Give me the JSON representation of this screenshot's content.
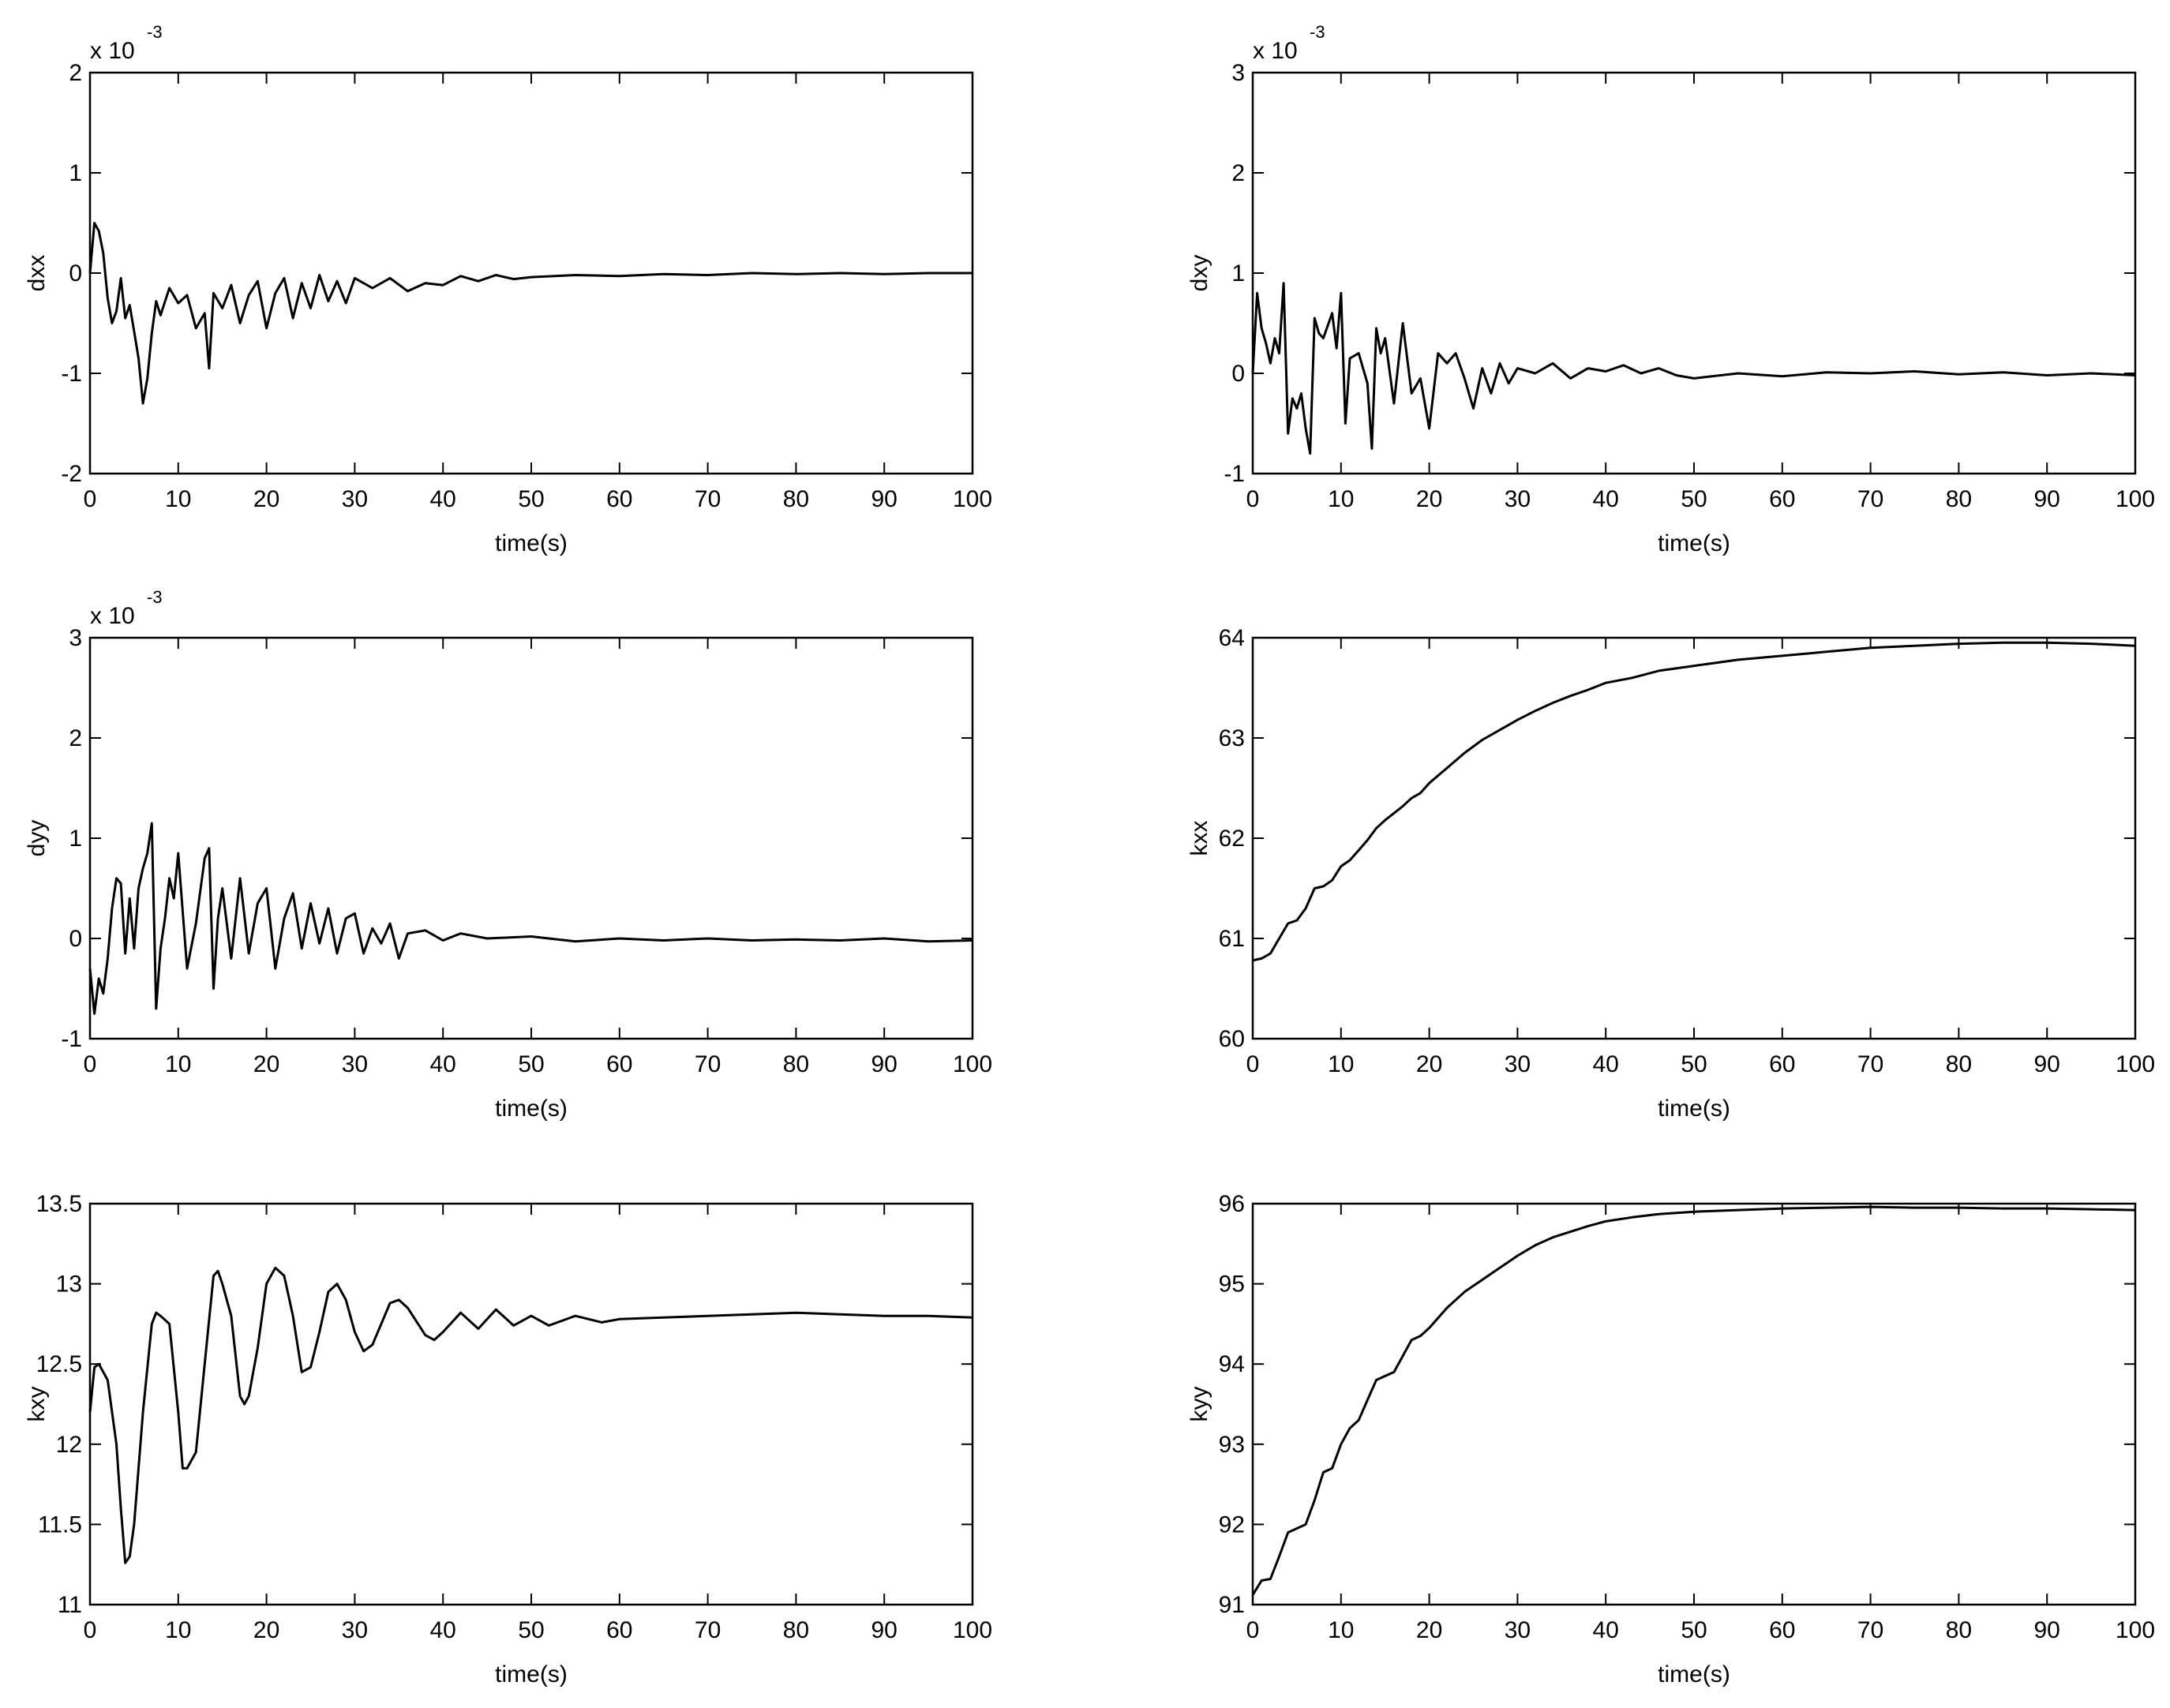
{
  "chart_data": [
    {
      "id": "dxx",
      "type": "line",
      "ylabel": "dxx",
      "xlabel": "time(s)",
      "exponent_label": "x 10",
      "exponent_power": "-3",
      "xlim": [
        0,
        100
      ],
      "ylim": [
        -2,
        2
      ],
      "xticks": [
        0,
        10,
        20,
        30,
        40,
        50,
        60,
        70,
        80,
        90,
        100
      ],
      "yticks": [
        -2,
        -1,
        0,
        1,
        2
      ],
      "grid": false,
      "series": [
        {
          "color": "#000000",
          "x": [
            0,
            0.5,
            1,
            1.5,
            2,
            2.5,
            3,
            3.5,
            4,
            4.5,
            5,
            5.5,
            6,
            6.5,
            7,
            7.5,
            8,
            9,
            10,
            11,
            12,
            13,
            13.5,
            14,
            15,
            16,
            17,
            18,
            19,
            20,
            21,
            22,
            23,
            24,
            25,
            26,
            27,
            28,
            29,
            30,
            32,
            34,
            36,
            38,
            40,
            42,
            44,
            46,
            48,
            50,
            55,
            60,
            65,
            70,
            75,
            80,
            85,
            90,
            95,
            100
          ],
          "y": [
            0.0,
            0.5,
            0.42,
            0.2,
            -0.25,
            -0.5,
            -0.38,
            -0.05,
            -0.45,
            -0.32,
            -0.58,
            -0.85,
            -1.3,
            -1.05,
            -0.6,
            -0.28,
            -0.42,
            -0.15,
            -0.3,
            -0.22,
            -0.55,
            -0.4,
            -0.95,
            -0.2,
            -0.35,
            -0.12,
            -0.5,
            -0.22,
            -0.08,
            -0.55,
            -0.2,
            -0.05,
            -0.45,
            -0.1,
            -0.35,
            -0.02,
            -0.28,
            -0.08,
            -0.3,
            -0.05,
            -0.15,
            -0.05,
            -0.18,
            -0.1,
            -0.12,
            -0.03,
            -0.08,
            -0.02,
            -0.06,
            -0.04,
            -0.02,
            -0.03,
            -0.01,
            -0.02,
            0.0,
            -0.01,
            0.0,
            -0.01,
            0.0,
            0.0
          ]
        }
      ]
    },
    {
      "id": "dxy",
      "type": "line",
      "ylabel": "dxy",
      "xlabel": "time(s)",
      "exponent_label": "x 10",
      "exponent_power": "-3",
      "xlim": [
        0,
        100
      ],
      "ylim": [
        -1,
        3
      ],
      "xticks": [
        0,
        10,
        20,
        30,
        40,
        50,
        60,
        70,
        80,
        90,
        100
      ],
      "yticks": [
        -1,
        0,
        1,
        2,
        3
      ],
      "grid": false,
      "series": [
        {
          "color": "#000000",
          "x": [
            0,
            0.5,
            1,
            1.5,
            2,
            2.5,
            3,
            3.5,
            4,
            4.5,
            5,
            5.5,
            6,
            6.5,
            7,
            7.5,
            8,
            9,
            9.5,
            10,
            10.5,
            11,
            12,
            13,
            13.5,
            14,
            14.5,
            15,
            16,
            17,
            18,
            19,
            20,
            21,
            22,
            23,
            24,
            25,
            26,
            27,
            28,
            29,
            30,
            32,
            34,
            36,
            38,
            40,
            42,
            44,
            46,
            48,
            50,
            55,
            60,
            65,
            70,
            75,
            80,
            85,
            90,
            95,
            100
          ],
          "y": [
            0.0,
            0.8,
            0.45,
            0.3,
            0.1,
            0.35,
            0.2,
            0.9,
            -0.6,
            -0.25,
            -0.35,
            -0.2,
            -0.55,
            -0.8,
            0.55,
            0.4,
            0.35,
            0.6,
            0.25,
            0.8,
            -0.5,
            0.15,
            0.2,
            -0.1,
            -0.75,
            0.45,
            0.2,
            0.35,
            -0.3,
            0.5,
            -0.2,
            -0.05,
            -0.55,
            0.2,
            0.1,
            0.2,
            -0.05,
            -0.35,
            0.05,
            -0.2,
            0.1,
            -0.1,
            0.05,
            0.0,
            0.1,
            -0.05,
            0.05,
            0.02,
            0.08,
            0.0,
            0.05,
            -0.02,
            -0.05,
            0.0,
            -0.03,
            0.01,
            0.0,
            0.02,
            -0.01,
            0.01,
            -0.02,
            0.0,
            -0.02
          ]
        }
      ]
    },
    {
      "id": "dyy",
      "type": "line",
      "ylabel": "dyy",
      "xlabel": "time(s)",
      "exponent_label": "x 10",
      "exponent_power": "-3",
      "xlim": [
        0,
        100
      ],
      "ylim": [
        -1,
        3
      ],
      "xticks": [
        0,
        10,
        20,
        30,
        40,
        50,
        60,
        70,
        80,
        90,
        100
      ],
      "yticks": [
        -1,
        0,
        1,
        2,
        3
      ],
      "grid": false,
      "series": [
        {
          "color": "#000000",
          "x": [
            0,
            0.5,
            1,
            1.5,
            2,
            2.5,
            3,
            3.5,
            4,
            4.5,
            5,
            5.5,
            6,
            6.5,
            7,
            7.5,
            8,
            8.5,
            9,
            9.5,
            10,
            11,
            12,
            13,
            13.5,
            14,
            14.5,
            15,
            16,
            17,
            18,
            19,
            20,
            21,
            22,
            23,
            24,
            25,
            26,
            27,
            28,
            29,
            30,
            31,
            32,
            33,
            34,
            35,
            36,
            38,
            40,
            42,
            45,
            50,
            55,
            60,
            65,
            70,
            75,
            80,
            85,
            90,
            95,
            100
          ],
          "y": [
            -0.3,
            -0.75,
            -0.4,
            -0.55,
            -0.2,
            0.3,
            0.6,
            0.55,
            -0.15,
            0.4,
            -0.1,
            0.5,
            0.7,
            0.85,
            1.15,
            -0.7,
            -0.1,
            0.2,
            0.6,
            0.4,
            0.85,
            -0.3,
            0.15,
            0.8,
            0.9,
            -0.5,
            0.2,
            0.5,
            -0.2,
            0.6,
            -0.15,
            0.35,
            0.5,
            -0.3,
            0.2,
            0.45,
            -0.1,
            0.35,
            -0.05,
            0.3,
            -0.15,
            0.2,
            0.25,
            -0.15,
            0.1,
            -0.05,
            0.15,
            -0.2,
            0.05,
            0.08,
            -0.02,
            0.05,
            0.0,
            0.02,
            -0.03,
            0.0,
            -0.02,
            0.0,
            -0.02,
            -0.01,
            -0.02,
            0.0,
            -0.03,
            -0.02
          ]
        }
      ]
    },
    {
      "id": "kxx",
      "type": "line",
      "ylabel": "kxx",
      "xlabel": "time(s)",
      "xlim": [
        0,
        100
      ],
      "ylim": [
        60,
        64
      ],
      "xticks": [
        0,
        10,
        20,
        30,
        40,
        50,
        60,
        70,
        80,
        90,
        100
      ],
      "yticks": [
        60,
        61,
        62,
        63,
        64
      ],
      "grid": false,
      "series": [
        {
          "color": "#000000",
          "x": [
            0,
            1,
            2,
            3,
            4,
            5,
            6,
            7,
            8,
            9,
            10,
            11,
            12,
            13,
            14,
            15,
            16,
            17,
            18,
            19,
            20,
            22,
            24,
            26,
            28,
            30,
            32,
            34,
            36,
            38,
            40,
            43,
            46,
            50,
            55,
            60,
            65,
            70,
            75,
            80,
            85,
            90,
            95,
            100
          ],
          "y": [
            60.78,
            60.8,
            60.85,
            61.0,
            61.15,
            61.18,
            61.3,
            61.5,
            61.52,
            61.58,
            61.72,
            61.78,
            61.88,
            61.98,
            62.1,
            62.18,
            62.25,
            62.32,
            62.4,
            62.45,
            62.55,
            62.7,
            62.85,
            62.98,
            63.08,
            63.18,
            63.27,
            63.35,
            63.42,
            63.48,
            63.55,
            63.6,
            63.67,
            63.72,
            63.78,
            63.82,
            63.86,
            63.9,
            63.92,
            63.94,
            63.95,
            63.95,
            63.94,
            63.92
          ]
        }
      ]
    },
    {
      "id": "kxy",
      "type": "line",
      "ylabel": "kxy",
      "xlabel": "time(s)",
      "xlim": [
        0,
        100
      ],
      "ylim": [
        11,
        13.5
      ],
      "xticks": [
        0,
        10,
        20,
        30,
        40,
        50,
        60,
        70,
        80,
        90,
        100
      ],
      "yticks": [
        11,
        11.5,
        12,
        12.5,
        13,
        13.5
      ],
      "grid": false,
      "series": [
        {
          "color": "#000000",
          "x": [
            0,
            0.5,
            1,
            2,
            3,
            3.5,
            4,
            4.5,
            5,
            6,
            7,
            7.5,
            8,
            9,
            10,
            10.5,
            11,
            12,
            13,
            14,
            14.5,
            15,
            16,
            17,
            17.5,
            18,
            19,
            20,
            21,
            22,
            23,
            24,
            25,
            26,
            27,
            28,
            29,
            30,
            31,
            32,
            34,
            35,
            36,
            38,
            39,
            40,
            42,
            44,
            46,
            48,
            50,
            52,
            55,
            58,
            60,
            65,
            70,
            75,
            80,
            85,
            90,
            95,
            100
          ],
          "y": [
            12.2,
            12.48,
            12.5,
            12.4,
            12.0,
            11.6,
            11.26,
            11.3,
            11.5,
            12.2,
            12.75,
            12.82,
            12.8,
            12.75,
            12.2,
            11.85,
            11.85,
            11.95,
            12.5,
            13.05,
            13.08,
            13.0,
            12.8,
            12.3,
            12.25,
            12.3,
            12.6,
            13.0,
            13.1,
            13.05,
            12.8,
            12.45,
            12.48,
            12.7,
            12.95,
            13.0,
            12.9,
            12.7,
            12.58,
            12.62,
            12.88,
            12.9,
            12.85,
            12.68,
            12.65,
            12.7,
            12.82,
            12.72,
            12.84,
            12.74,
            12.8,
            12.74,
            12.8,
            12.76,
            12.78,
            12.79,
            12.8,
            12.81,
            12.82,
            12.81,
            12.8,
            12.8,
            12.79
          ]
        }
      ]
    },
    {
      "id": "kyy",
      "type": "line",
      "ylabel": "kyy",
      "xlabel": "time(s)",
      "xlim": [
        0,
        100
      ],
      "ylim": [
        91,
        96
      ],
      "xticks": [
        0,
        10,
        20,
        30,
        40,
        50,
        60,
        70,
        80,
        90,
        100
      ],
      "yticks": [
        91,
        92,
        93,
        94,
        95,
        96
      ],
      "grid": false,
      "series": [
        {
          "color": "#000000",
          "x": [
            0,
            1,
            2,
            3,
            4,
            5,
            6,
            7,
            8,
            9,
            10,
            11,
            12,
            13,
            14,
            15,
            16,
            17,
            18,
            19,
            20,
            22,
            24,
            26,
            28,
            30,
            32,
            34,
            36,
            38,
            40,
            43,
            46,
            50,
            55,
            60,
            65,
            70,
            75,
            80,
            85,
            90,
            95,
            100
          ],
          "y": [
            91.12,
            91.3,
            91.32,
            91.6,
            91.9,
            91.95,
            92.0,
            92.3,
            92.65,
            92.7,
            93.0,
            93.2,
            93.3,
            93.55,
            93.8,
            93.85,
            93.9,
            94.1,
            94.3,
            94.35,
            94.45,
            94.7,
            94.9,
            95.05,
            95.2,
            95.35,
            95.48,
            95.58,
            95.65,
            95.72,
            95.78,
            95.83,
            95.87,
            95.9,
            95.92,
            95.94,
            95.95,
            95.96,
            95.95,
            95.95,
            95.94,
            95.94,
            95.93,
            95.92
          ]
        }
      ]
    }
  ]
}
